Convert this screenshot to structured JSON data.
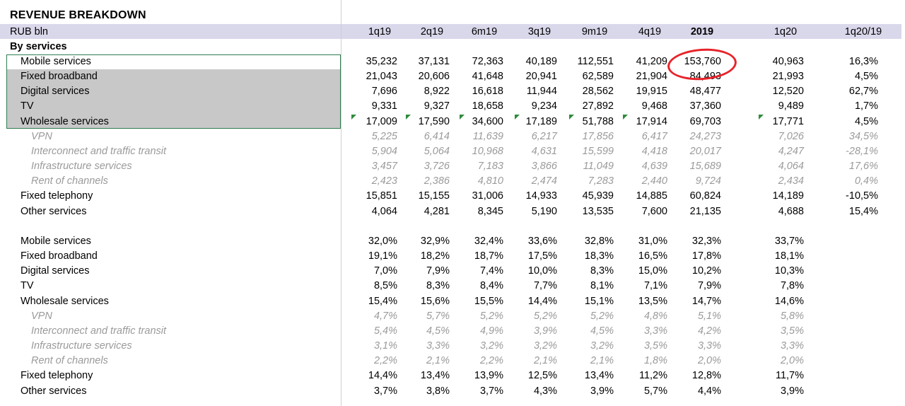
{
  "title": "REVENUE BREAKDOWN",
  "unit_label": "RUB bln",
  "section_label": "By services",
  "columns": [
    "1q19",
    "2q19",
    "6m19",
    "3q19",
    "9m19",
    "4q19",
    "2019",
    "1q20",
    "1q20/19"
  ],
  "highlight_column": "2019",
  "annotation": {
    "type": "red-circle",
    "target": "Mobile services / 2019",
    "value": "153,760",
    "color": "#e8232a"
  },
  "selection_border_color": "#2e7d4f",
  "rows": [
    {
      "label": "Mobile services",
      "sub": false,
      "values": [
        "35,232",
        "37,131",
        "72,363",
        "40,189",
        "112,551",
        "41,209",
        "153,760",
        "40,963",
        "16,3%"
      ]
    },
    {
      "label": "Fixed broadband",
      "sub": false,
      "values": [
        "21,043",
        "20,606",
        "41,648",
        "20,941",
        "62,589",
        "21,904",
        "84,493",
        "21,993",
        "4,5%"
      ]
    },
    {
      "label": "Digital services",
      "sub": false,
      "values": [
        "7,696",
        "8,922",
        "16,618",
        "11,944",
        "28,562",
        "19,915",
        "48,477",
        "12,520",
        "62,7%"
      ]
    },
    {
      "label": "TV",
      "sub": false,
      "values": [
        "9,331",
        "9,327",
        "18,658",
        "9,234",
        "27,892",
        "9,468",
        "37,360",
        "9,489",
        "1,7%"
      ]
    },
    {
      "label": "Wholesale services",
      "sub": false,
      "values": [
        "17,009",
        "17,590",
        "34,600",
        "17,189",
        "51,788",
        "17,914",
        "69,703",
        "17,771",
        "4,5%"
      ]
    },
    {
      "label": "VPN",
      "sub": true,
      "values": [
        "5,225",
        "6,414",
        "11,639",
        "6,217",
        "17,856",
        "6,417",
        "24,273",
        "7,026",
        "34,5%"
      ]
    },
    {
      "label": "Interconnect and traffic transit",
      "sub": true,
      "values": [
        "5,904",
        "5,064",
        "10,968",
        "4,631",
        "15,599",
        "4,418",
        "20,017",
        "4,247",
        "-28,1%"
      ]
    },
    {
      "label": "Infrastructure services",
      "sub": true,
      "values": [
        "3,457",
        "3,726",
        "7,183",
        "3,866",
        "11,049",
        "4,639",
        "15,689",
        "4,064",
        "17,6%"
      ]
    },
    {
      "label": "Rent of channels",
      "sub": true,
      "values": [
        "2,423",
        "2,386",
        "4,810",
        "2,474",
        "7,283",
        "2,440",
        "9,724",
        "2,434",
        "0,4%"
      ]
    },
    {
      "label": "Fixed telephony",
      "sub": false,
      "values": [
        "15,851",
        "15,155",
        "31,006",
        "14,933",
        "45,939",
        "14,885",
        "60,824",
        "14,189",
        "-10,5%"
      ]
    },
    {
      "label": "Other services",
      "sub": false,
      "values": [
        "4,064",
        "4,281",
        "8,345",
        "5,190",
        "13,535",
        "7,600",
        "21,135",
        "4,688",
        "15,4%"
      ]
    }
  ],
  "share_rows": [
    {
      "label": "Mobile services",
      "sub": false,
      "values": [
        "32,0%",
        "32,9%",
        "32,4%",
        "33,6%",
        "32,8%",
        "31,0%",
        "32,3%",
        "33,7%",
        ""
      ]
    },
    {
      "label": "Fixed broadband",
      "sub": false,
      "values": [
        "19,1%",
        "18,2%",
        "18,7%",
        "17,5%",
        "18,3%",
        "16,5%",
        "17,8%",
        "18,1%",
        ""
      ]
    },
    {
      "label": "Digital services",
      "sub": false,
      "values": [
        "7,0%",
        "7,9%",
        "7,4%",
        "10,0%",
        "8,3%",
        "15,0%",
        "10,2%",
        "10,3%",
        ""
      ]
    },
    {
      "label": "TV",
      "sub": false,
      "values": [
        "8,5%",
        "8,3%",
        "8,4%",
        "7,7%",
        "8,1%",
        "7,1%",
        "7,9%",
        "7,8%",
        ""
      ]
    },
    {
      "label": "Wholesale services",
      "sub": false,
      "values": [
        "15,4%",
        "15,6%",
        "15,5%",
        "14,4%",
        "15,1%",
        "13,5%",
        "14,7%",
        "14,6%",
        ""
      ]
    },
    {
      "label": "VPN",
      "sub": true,
      "values": [
        "4,7%",
        "5,7%",
        "5,2%",
        "5,2%",
        "5,2%",
        "4,8%",
        "5,1%",
        "5,8%",
        ""
      ]
    },
    {
      "label": "Interconnect and traffic transit",
      "sub": true,
      "values": [
        "5,4%",
        "4,5%",
        "4,9%",
        "3,9%",
        "4,5%",
        "3,3%",
        "4,2%",
        "3,5%",
        ""
      ]
    },
    {
      "label": "Infrastructure services",
      "sub": true,
      "values": [
        "3,1%",
        "3,3%",
        "3,2%",
        "3,2%",
        "3,2%",
        "3,5%",
        "3,3%",
        "3,3%",
        ""
      ]
    },
    {
      "label": "Rent of channels",
      "sub": true,
      "values": [
        "2,2%",
        "2,1%",
        "2,2%",
        "2,1%",
        "2,1%",
        "1,8%",
        "2,0%",
        "2,0%",
        ""
      ]
    },
    {
      "label": "Fixed telephony",
      "sub": false,
      "values": [
        "14,4%",
        "13,4%",
        "13,9%",
        "12,5%",
        "13,4%",
        "11,2%",
        "12,8%",
        "11,7%",
        ""
      ]
    },
    {
      "label": "Other services",
      "sub": false,
      "values": [
        "3,7%",
        "3,8%",
        "3,7%",
        "4,3%",
        "3,9%",
        "5,7%",
        "4,4%",
        "3,9%",
        ""
      ]
    }
  ]
}
